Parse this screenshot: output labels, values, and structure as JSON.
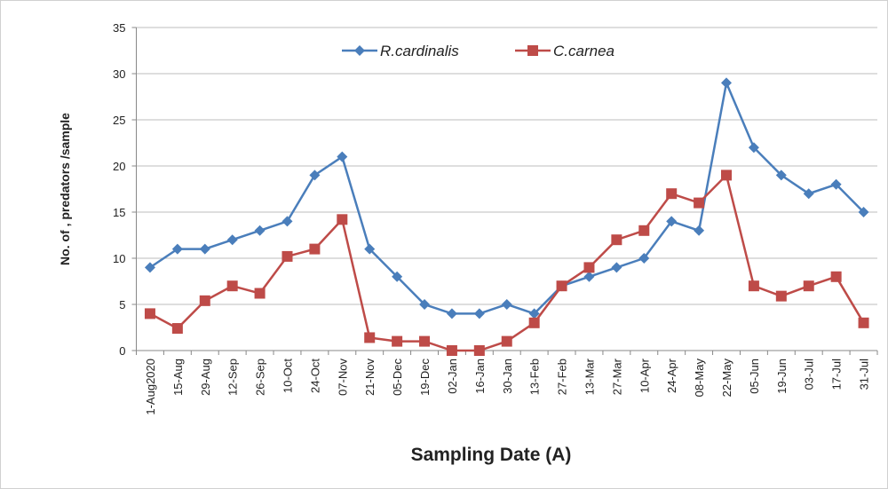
{
  "chart_data": {
    "type": "line",
    "x_label": "Sampling Date  (A)",
    "y_label": "No. of , predators /sample",
    "categories": [
      "1-Aug2020",
      "15-Aug",
      "29-Aug",
      "12-Sep",
      "26-Sep",
      "10-Oct",
      "24-Oct",
      "07-Nov",
      "21-Nov",
      "05-Dec",
      "19-Dec",
      "02-Jan",
      "16-Jan",
      "30-Jan",
      "13-Feb",
      "27-Feb",
      "13-Mar",
      "27-Mar",
      "10-Apr",
      "24-Apr",
      "08-May",
      "22-May",
      "05-Jun",
      "19-Jun",
      "03-Jul",
      "17-Jul",
      "31-Jul"
    ],
    "series": [
      {
        "name": "R.cardinalis",
        "color": "#4a7ebb",
        "marker": "diamond",
        "values": [
          9,
          11,
          11,
          12,
          13,
          14,
          19,
          21,
          11,
          8,
          5,
          4,
          4,
          5,
          4,
          7,
          8,
          9,
          10,
          14,
          13,
          29,
          22,
          19,
          17,
          18,
          15
        ]
      },
      {
        "name": "C.carnea",
        "color": "#be4b48",
        "marker": "square",
        "values": [
          4,
          2.4,
          5.4,
          7,
          6.2,
          10.2,
          11,
          14.2,
          1.4,
          1,
          1,
          0,
          0,
          1,
          3,
          7,
          9,
          12,
          13,
          17,
          16,
          19,
          7,
          5.9,
          7,
          8,
          3
        ]
      }
    ],
    "ylim": [
      0,
      35
    ],
    "yticks": [
      0,
      5,
      10,
      15,
      20,
      25,
      30,
      35
    ],
    "grid": true
  }
}
